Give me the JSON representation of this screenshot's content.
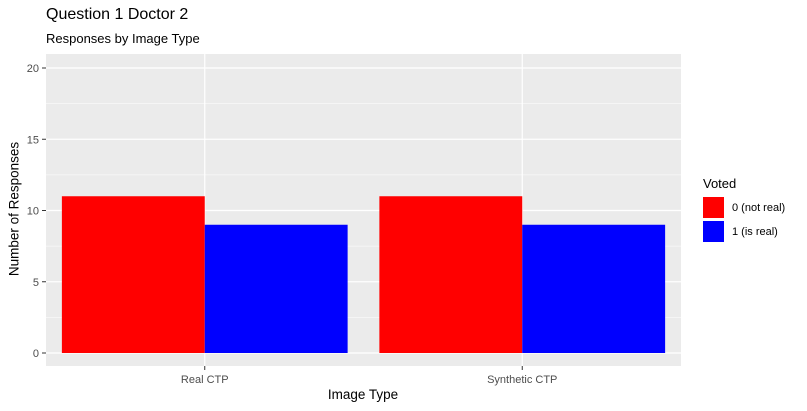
{
  "chart_data": {
    "type": "bar",
    "title": "Question 1 Doctor 2",
    "subtitle": "Responses by Image Type",
    "xlabel": "Image Type",
    "ylabel": "Number of Responses",
    "categories": [
      "Real CTP",
      "Synthetic CTP"
    ],
    "series": [
      {
        "name": "0 (not real)",
        "values": [
          11,
          11
        ],
        "color": "#ff0000"
      },
      {
        "name": "1 (is real)",
        "values": [
          9,
          9
        ],
        "color": "#0000ff"
      }
    ],
    "ylim": [
      0,
      20
    ],
    "yticks": [
      0,
      5,
      10,
      15,
      20
    ],
    "legend": {
      "title": "Voted",
      "position": "right"
    },
    "grid": true,
    "panel_background": "#ebebeb",
    "grid_color": "#ffffff"
  }
}
